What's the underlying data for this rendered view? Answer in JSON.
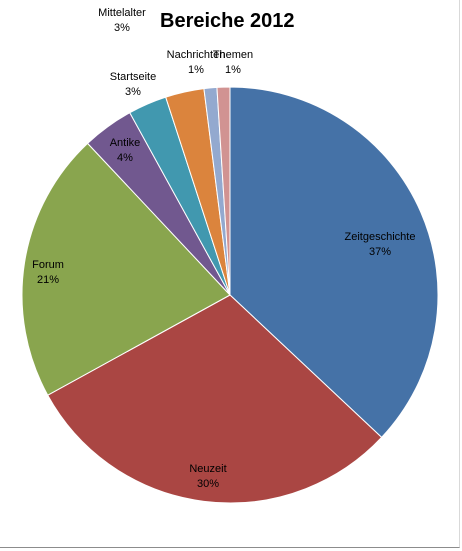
{
  "chart_data": {
    "type": "pie",
    "title": "Bereiche 2012",
    "slices": [
      {
        "label": "Zeitgeschichte",
        "value": 37,
        "pct_label": "37%",
        "color": "#4572A7"
      },
      {
        "label": "Neuzeit",
        "value": 30,
        "pct_label": "30%",
        "color": "#AA4643"
      },
      {
        "label": "Forum",
        "value": 21,
        "pct_label": "21%",
        "color": "#89A54E"
      },
      {
        "label": "Antike",
        "value": 4,
        "pct_label": "4%",
        "color": "#71588F"
      },
      {
        "label": "Startseite",
        "value": 3,
        "pct_label": "3%",
        "color": "#4198AF"
      },
      {
        "label": "Mittelalter",
        "value": 3,
        "pct_label": "3%",
        "color": "#DB843D"
      },
      {
        "label": "Nachrichten",
        "value": 1,
        "pct_label": "1%",
        "color": "#93A9CF"
      },
      {
        "label": "Themen",
        "value": 1,
        "pct_label": "1%",
        "color": "#D19392"
      }
    ],
    "legend": "none",
    "data_labels": "category and percentage"
  }
}
